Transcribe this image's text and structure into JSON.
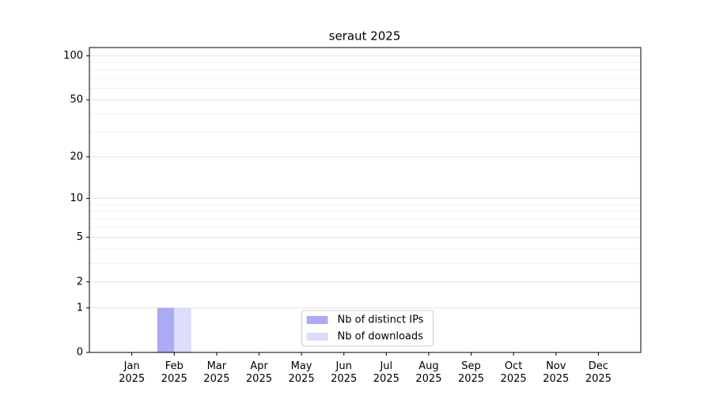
{
  "chart_data": {
    "type": "bar",
    "title": "seraut 2025",
    "categories": [
      "Jan 2025",
      "Feb 2025",
      "Mar 2025",
      "Apr 2025",
      "May 2025",
      "Jun 2025",
      "Jul 2025",
      "Aug 2025",
      "Sep 2025",
      "Oct 2025",
      "Nov 2025",
      "Dec 2025"
    ],
    "series": [
      {
        "name": "Nb of distinct IPs",
        "color": "#aaaaf5",
        "values": [
          0,
          1,
          0,
          0,
          0,
          0,
          0,
          0,
          0,
          0,
          0,
          0
        ]
      },
      {
        "name": "Nb of downloads",
        "color": "#dcdcfc",
        "values": [
          0,
          1,
          0,
          0,
          0,
          0,
          0,
          0,
          0,
          0,
          0,
          0
        ]
      }
    ],
    "yscale": "log1p",
    "ylim": [
      0,
      114
    ],
    "yticks": [
      0,
      1,
      2,
      5,
      10,
      20,
      50,
      100
    ],
    "minor_yticks": [
      3,
      4,
      6,
      7,
      8,
      9,
      30,
      40,
      60,
      70,
      80,
      90
    ],
    "grid": true,
    "legend": "lower center"
  }
}
